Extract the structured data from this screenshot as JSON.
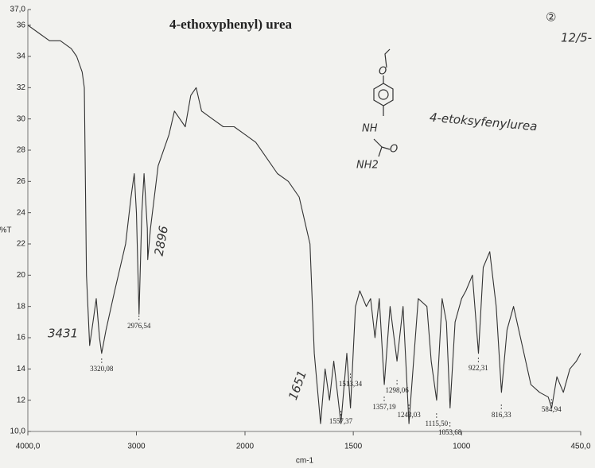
{
  "chart_data": {
    "type": "line",
    "title": "4-ethoxyphenyl) urea",
    "x_label": "cm-1",
    "y_label": "%T",
    "x": [
      4000,
      3900,
      3800,
      3700,
      3600,
      3550,
      3500,
      3480,
      3460,
      3431,
      3400,
      3370,
      3340,
      3320,
      3280,
      3200,
      3100,
      3050,
      3020,
      3000,
      2976,
      2950,
      2930,
      2900,
      2896,
      2870,
      2800,
      2700,
      2650,
      2600,
      2550,
      2500,
      2450,
      2400,
      2300,
      2200,
      2100,
      2000,
      1950,
      1900,
      1850,
      1800,
      1750,
      1700,
      1680,
      1651,
      1630,
      1610,
      1590,
      1557,
      1530,
      1513,
      1490,
      1470,
      1440,
      1420,
      1400,
      1380,
      1357,
      1330,
      1298,
      1270,
      1243,
      1200,
      1160,
      1140,
      1115,
      1090,
      1070,
      1053,
      1030,
      1000,
      980,
      950,
      922,
      900,
      870,
      840,
      816,
      790,
      760,
      720,
      680,
      640,
      600,
      584,
      560,
      530,
      500,
      470,
      450
    ],
    "values": [
      36,
      35.5,
      35,
      35,
      34.5,
      34,
      33,
      32,
      20,
      15.5,
      17,
      18.5,
      16,
      15,
      16.5,
      19,
      22,
      25,
      26.5,
      24,
      17.5,
      24,
      26.5,
      23,
      21,
      23,
      27,
      29,
      30.5,
      30,
      29.5,
      31.5,
      32,
      30.5,
      30,
      29.5,
      29.5,
      29,
      28.5,
      27.5,
      26.5,
      26,
      25,
      22,
      15,
      10.5,
      14,
      12,
      14.5,
      10.5,
      15,
      11.5,
      18,
      19,
      18,
      18.5,
      16,
      18.5,
      13,
      18,
      14.5,
      18,
      10.5,
      18.5,
      18,
      14.5,
      12,
      18.5,
      17,
      11.5,
      17,
      18.5,
      19,
      20,
      15,
      20.5,
      21.5,
      18,
      12.5,
      16.5,
      18,
      15.5,
      13,
      12.5,
      12.2,
      11.5,
      13.5,
      12.5,
      14,
      14.5,
      15
    ],
    "color": "#333333",
    "xlim": [
      4000,
      450
    ],
    "x_scale_break": 2000,
    "xticks": [
      {
        "value": 4000,
        "label": "4000,0"
      },
      3000,
      2000,
      1500,
      1000,
      {
        "value": 450,
        "label": "450,0"
      }
    ],
    "ylim": [
      10,
      37
    ],
    "yticks": [
      {
        "value": 10,
        "label": "10,0"
      },
      12,
      14,
      16,
      18,
      20,
      22,
      24,
      26,
      28,
      30,
      32,
      34,
      36,
      {
        "value": 37,
        "label": "37,0"
      }
    ],
    "peaks": [
      {
        "x": 3320.08,
        "label": "3320,08"
      },
      {
        "x": 2976.54,
        "label": "2976,54"
      },
      {
        "x": 1557.37,
        "label": "1557,37"
      },
      {
        "x": 1513.34,
        "label": "1513,34"
      },
      {
        "x": 1357.19,
        "label": "1357,19"
      },
      {
        "x": 1298.06,
        "label": "1298,06"
      },
      {
        "x": 1243.03,
        "label": "1243,03"
      },
      {
        "x": 1115.5,
        "label": "1115,50"
      },
      {
        "x": 1053.68,
        "label": "1053,68"
      },
      {
        "x": 922.31,
        "label": "922,31"
      },
      {
        "x": 816.33,
        "label": "816,33"
      },
      {
        "x": 584.94,
        "label": "584,94"
      }
    ],
    "annotations": [
      "3431",
      "2896",
      "1651",
      "4-etoksyfenylurea",
      "②",
      "12/5-"
    ],
    "structure_labels": [
      "O",
      "NH",
      "O",
      "NH2"
    ]
  }
}
